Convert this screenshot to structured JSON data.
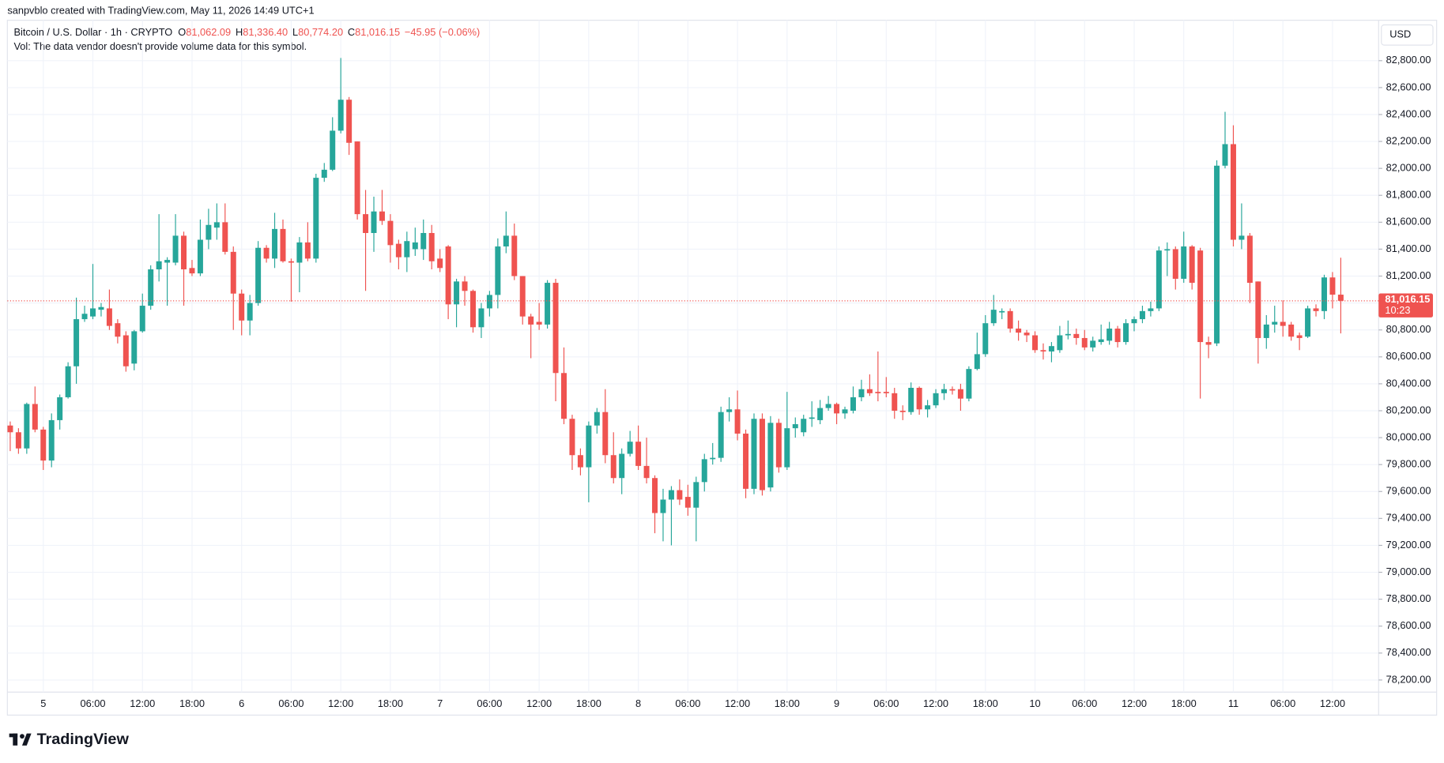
{
  "header": {
    "credit": "sanpvblo created with TradingView.com, May 11, 2026 14:49 UTC+1"
  },
  "chart_data": {
    "type": "candlestick",
    "title": "Bitcoin / U.S. Dollar · 1h · CRYPTO",
    "legend": [
      {
        "key": "O",
        "value": "81,062.09"
      },
      {
        "key": "H",
        "value": "81,336.40"
      },
      {
        "key": "L",
        "value": "80,774.20"
      },
      {
        "key": "C",
        "value": "81,016.15"
      }
    ],
    "change": "−45.95 (−0.06%)",
    "volume_note": "Vol: The data vendor doesn't provide volume data for this symbol.",
    "currency": "USD",
    "up_color": "#26a69a",
    "down_color": "#ef5350",
    "grid": true,
    "ylim": [
      78110,
      83100
    ],
    "yticks": [
      {
        "value": 78200,
        "label": "78,200.00"
      },
      {
        "value": 78400,
        "label": "78,400.00"
      },
      {
        "value": 78600,
        "label": "78,600.00"
      },
      {
        "value": 78800,
        "label": "78,800.00"
      },
      {
        "value": 79000,
        "label": "79,000.00"
      },
      {
        "value": 79200,
        "label": "79,200.00"
      },
      {
        "value": 79400,
        "label": "79,400.00"
      },
      {
        "value": 79600,
        "label": "79,600.00"
      },
      {
        "value": 79800,
        "label": "79,800.00"
      },
      {
        "value": 80000,
        "label": "80,000.00"
      },
      {
        "value": 80200,
        "label": "80,200.00"
      },
      {
        "value": 80400,
        "label": "80,400.00"
      },
      {
        "value": 80600,
        "label": "80,600.00"
      },
      {
        "value": 80800,
        "label": "80,800.00"
      },
      {
        "value": 81000,
        "label": "81,000.00"
      },
      {
        "value": 81200,
        "label": "81,200.00"
      },
      {
        "value": 81400,
        "label": "81,400.00"
      },
      {
        "value": 81600,
        "label": "81,600.00"
      },
      {
        "value": 81800,
        "label": "81,800.00"
      },
      {
        "value": 82000,
        "label": "82,000.00"
      },
      {
        "value": 82200,
        "label": "82,200.00"
      },
      {
        "value": 82400,
        "label": "82,400.00"
      },
      {
        "value": 82600,
        "label": "82,600.00"
      },
      {
        "value": 82800,
        "label": "82,800.00"
      }
    ],
    "last_price": {
      "value": 81016.15,
      "label": "81,016.15"
    },
    "countdown": "10:23",
    "categories": [
      null,
      null,
      null,
      null,
      "5",
      null,
      null,
      null,
      null,
      null,
      "06:00",
      null,
      null,
      null,
      null,
      null,
      "12:00",
      null,
      null,
      null,
      null,
      null,
      "18:00",
      null,
      null,
      null,
      null,
      null,
      "6",
      null,
      null,
      null,
      null,
      null,
      "06:00",
      null,
      null,
      null,
      null,
      null,
      "12:00",
      null,
      null,
      null,
      null,
      null,
      "18:00",
      null,
      null,
      null,
      null,
      null,
      "7",
      null,
      null,
      null,
      null,
      null,
      "06:00",
      null,
      null,
      null,
      null,
      null,
      "12:00",
      null,
      null,
      null,
      null,
      null,
      "18:00",
      null,
      null,
      null,
      null,
      null,
      "8",
      null,
      null,
      null,
      null,
      null,
      "06:00",
      null,
      null,
      null,
      null,
      null,
      "12:00",
      null,
      null,
      null,
      null,
      null,
      "18:00",
      null,
      null,
      null,
      null,
      null,
      "9",
      null,
      null,
      null,
      null,
      null,
      "06:00",
      null,
      null,
      null,
      null,
      null,
      "12:00",
      null,
      null,
      null,
      null,
      null,
      "18:00",
      null,
      null,
      null,
      null,
      null,
      "10",
      null,
      null,
      null,
      null,
      null,
      "06:00",
      null,
      null,
      null,
      null,
      null,
      "12:00",
      null,
      null,
      null,
      null,
      null,
      "18:00",
      null,
      null,
      null,
      null,
      null,
      "11",
      null,
      null,
      null,
      null,
      null,
      "06:00",
      null,
      null,
      null,
      null,
      null,
      "12:00",
      null
    ],
    "open": [
      80090,
      80040,
      79920,
      80250,
      80060,
      79830,
      80130,
      80300,
      80530,
      80880,
      80900,
      80950,
      80960,
      80850,
      80760,
      80550,
      80790,
      80980,
      81250,
      81300,
      81300,
      81500,
      81260,
      81220,
      81470,
      81560,
      81600,
      81380,
      81070,
      80870,
      81000,
      81410,
      81330,
      81550,
      81310,
      81300,
      81450,
      81330,
      81930,
      81990,
      82280,
      82510,
      82200,
      81660,
      81520,
      81680,
      81610,
      81440,
      81340,
      81400,
      81400,
      81520,
      81330,
      81420,
      80990,
      81160,
      81090,
      80820,
      80960,
      81060,
      81420,
      81500,
      81200,
      80900,
      80860,
      80840,
      81150,
      80480,
      80140,
      79870,
      79780,
      80090,
      80190,
      79870,
      79700,
      79880,
      79970,
      79790,
      79700,
      79440,
      79540,
      79610,
      79560,
      79480,
      79670,
      79840,
      79850,
      80190,
      80210,
      80030,
      79620,
      80140,
      79630,
      80110,
      79780,
      80070,
      80040,
      80140,
      80130,
      80220,
      80250,
      80180,
      80200,
      80300,
      80360,
      80340,
      80340,
      80330,
      80200,
      80190,
      80370,
      80210,
      80240,
      80330,
      80360,
      80360,
      80290,
      80510,
      80620,
      80850,
      80930,
      80940,
      80810,
      80780,
      80760,
      80650,
      80640,
      80650,
      80760,
      80770,
      80740,
      80670,
      80710,
      80720,
      80810,
      80710,
      80850,
      80880,
      80940,
      80960,
      81390,
      81400,
      81180,
      81420,
      81390,
      80710,
      80700,
      82020,
      82180,
      81470,
      81500,
      81160,
      80740,
      80840,
      80860,
      80840,
      80760,
      80750,
      80960,
      80940,
      81190,
      81062.09
    ],
    "high": [
      80120,
      80070,
      80260,
      80380,
      80080,
      80180,
      80320,
      80560,
      81040,
      80980,
      81290,
      81000,
      81100,
      80880,
      80790,
      80800,
      81070,
      81280,
      81660,
      81340,
      81660,
      81530,
      81320,
      81620,
      81700,
      81740,
      81740,
      81420,
      81100,
      81060,
      81460,
      81430,
      81670,
      81620,
      81330,
      81490,
      81600,
      81960,
      82040,
      82380,
      82820,
      82530,
      82200,
      81840,
      81790,
      81840,
      81660,
      81470,
      81530,
      81560,
      81620,
      81580,
      81400,
      81430,
      81180,
      81200,
      81100,
      81000,
      81090,
      81480,
      81680,
      81590,
      81200,
      80920,
      81000,
      81170,
      81180,
      80670,
      80170,
      79920,
      80120,
      80220,
      80360,
      80040,
      79920,
      80050,
      80090,
      80000,
      79720,
      79620,
      79640,
      79690,
      79650,
      79710,
      79880,
      79960,
      80230,
      80300,
      80350,
      80060,
      80180,
      80180,
      80160,
      80140,
      80340,
      80150,
      80170,
      80270,
      80280,
      80310,
      80260,
      80230,
      80380,
      80430,
      80470,
      80640,
      80450,
      80370,
      80240,
      80410,
      80380,
      80280,
      80360,
      80400,
      80380,
      80400,
      80530,
      80780,
      80910,
      81060,
      80960,
      80960,
      80870,
      80800,
      80790,
      80700,
      80710,
      80830,
      80870,
      80810,
      80800,
      80750,
      80840,
      80860,
      80830,
      80880,
      80900,
      80980,
      81010,
      81420,
      81450,
      81420,
      81530,
      81430,
      81410,
      80750,
      82060,
      82420,
      82320,
      81740,
      81520,
      81160,
      80910,
      80980,
      81020,
      80860,
      80780,
      80980,
      80990,
      81210,
      81230,
      81336.4
    ],
    "low": [
      79900,
      79880,
      79880,
      80040,
      79760,
      79780,
      80060,
      80290,
      80400,
      80860,
      80880,
      80900,
      80800,
      80700,
      80490,
      80500,
      80780,
      80950,
      81160,
      80980,
      81280,
      80980,
      81200,
      81200,
      81400,
      81470,
      81360,
      80800,
      80760,
      80760,
      80980,
      81300,
      81260,
      81300,
      81010,
      81080,
      81310,
      81300,
      81900,
      81980,
      82260,
      82100,
      81620,
      81090,
      81380,
      81580,
      81300,
      81250,
      81230,
      81350,
      81320,
      81250,
      81230,
      80880,
      80820,
      80980,
      80780,
      80740,
      80900,
      80960,
      81370,
      81170,
      80840,
      80590,
      80800,
      80810,
      80270,
      80100,
      79760,
      79720,
      79520,
      80030,
      79810,
      79660,
      79580,
      79860,
      79760,
      79660,
      79290,
      79230,
      79200,
      79500,
      79420,
      79230,
      79600,
      79800,
      79820,
      80120,
      79980,
      79550,
      79580,
      79570,
      79600,
      79740,
      79760,
      80000,
      80010,
      80080,
      80100,
      80200,
      80100,
      80140,
      80180,
      80270,
      80310,
      80270,
      80300,
      80140,
      80130,
      80170,
      80170,
      80150,
      80220,
      80280,
      80320,
      80200,
      80270,
      80500,
      80600,
      80830,
      80880,
      80780,
      80720,
      80710,
      80630,
      80580,
      80560,
      80630,
      80730,
      80690,
      80650,
      80640,
      80690,
      80690,
      80670,
      80690,
      80790,
      80850,
      80900,
      80940,
      81200,
      81100,
      81150,
      81100,
      80290,
      80590,
      80680,
      82000,
      81420,
      81400,
      81000,
      80550,
      80660,
      80780,
      80750,
      80720,
      80650,
      80740,
      80900,
      80880,
      80960,
      80774.2
    ],
    "close": [
      80040,
      79920,
      80250,
      80060,
      79830,
      80130,
      80300,
      80530,
      80880,
      80920,
      80960,
      80970,
      80830,
      80750,
      80530,
      80790,
      80980,
      81250,
      81310,
      81320,
      81500,
      81250,
      81220,
      81470,
      81580,
      81600,
      81380,
      81070,
      80870,
      81000,
      81410,
      81330,
      81550,
      81310,
      81300,
      81450,
      81330,
      81930,
      81990,
      82280,
      82510,
      82190,
      81660,
      81520,
      81680,
      81610,
      81430,
      81340,
      81460,
      81450,
      81520,
      81310,
      81260,
      80990,
      81160,
      81090,
      80820,
      80960,
      81060,
      81420,
      81500,
      81200,
      80900,
      80840,
      80840,
      81150,
      80480,
      80140,
      79870,
      79780,
      80090,
      80190,
      79870,
      79700,
      79880,
      79970,
      79790,
      79700,
      79440,
      79540,
      79610,
      79540,
      79480,
      79670,
      79840,
      79850,
      80190,
      80210,
      80030,
      79620,
      80140,
      79610,
      80110,
      79780,
      80070,
      80100,
      80140,
      80150,
      80220,
      80250,
      80180,
      80210,
      80300,
      80360,
      80330,
      80330,
      80330,
      80200,
      80190,
      80370,
      80210,
      80240,
      80330,
      80360,
      80350,
      80290,
      80510,
      80620,
      80850,
      80950,
      80940,
      80810,
      80780,
      80760,
      80650,
      80640,
      80680,
      80760,
      80770,
      80740,
      80670,
      80720,
      80730,
      80810,
      80710,
      80850,
      80880,
      80940,
      80960,
      81390,
      81400,
      81180,
      81420,
      81150,
      80710,
      80690,
      82020,
      82180,
      81470,
      81500,
      81150,
      80740,
      80840,
      80860,
      80830,
      80750,
      80740,
      80960,
      80940,
      81190,
      81062,
      81016.15
    ]
  },
  "footer": {
    "brand": "TradingView"
  }
}
